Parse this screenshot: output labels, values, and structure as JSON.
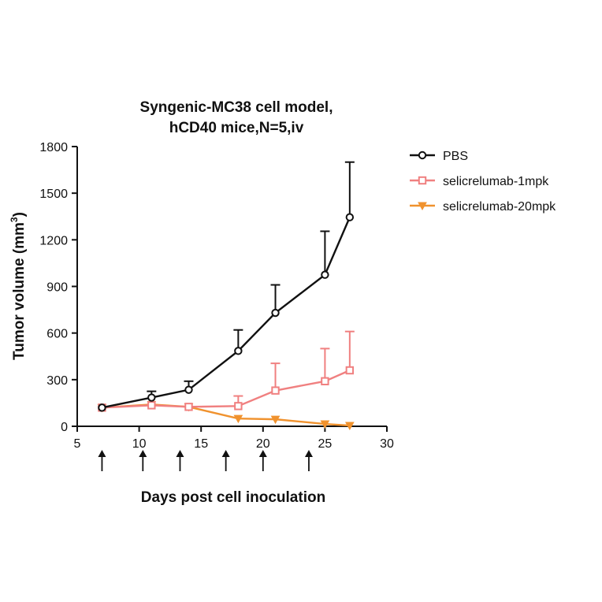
{
  "chart_data": {
    "type": "line",
    "title": [
      "Syngenic-MC38 cell model,",
      "hCD40 mice,N=5,iv"
    ],
    "xlabel": "Days post cell inoculation",
    "ylabel": "Tumor volume (mm",
    "ylabel_sup": "3",
    "ylabel_close": ")",
    "xlim": [
      5,
      30
    ],
    "ylim": [
      0,
      1800
    ],
    "xticks": [
      "5",
      "10",
      "15",
      "20",
      "25",
      "30"
    ],
    "yticks": [
      "0",
      "300",
      "600",
      "900",
      "1200",
      "1500",
      "1800"
    ],
    "legend_position": "top-right",
    "dosing_days": [
      7,
      10.3,
      13.3,
      17,
      20,
      23.7
    ],
    "series": [
      {
        "name": "PBS",
        "color": "#111111",
        "marker": "circle",
        "x": [
          7,
          11,
          14,
          18,
          21,
          25,
          27
        ],
        "y": [
          120,
          185,
          235,
          485,
          730,
          975,
          1345
        ],
        "error": [
          0,
          40,
          55,
          135,
          180,
          280,
          355
        ]
      },
      {
        "name": "selicrelumab-1mpk",
        "color": "#f08080",
        "marker": "square",
        "x": [
          7,
          11,
          14,
          18,
          21,
          25,
          27
        ],
        "y": [
          120,
          135,
          125,
          130,
          230,
          290,
          360
        ],
        "error": [
          0,
          0,
          0,
          65,
          175,
          210,
          250
        ]
      },
      {
        "name": "selicrelumab-20mpk",
        "color": "#f0922e",
        "marker": "triangle-down",
        "x": [
          7,
          11,
          14,
          18,
          21,
          25,
          27
        ],
        "y": [
          120,
          140,
          125,
          50,
          45,
          15,
          5
        ],
        "error": [
          0,
          0,
          0,
          0,
          0,
          0,
          0
        ]
      }
    ]
  }
}
